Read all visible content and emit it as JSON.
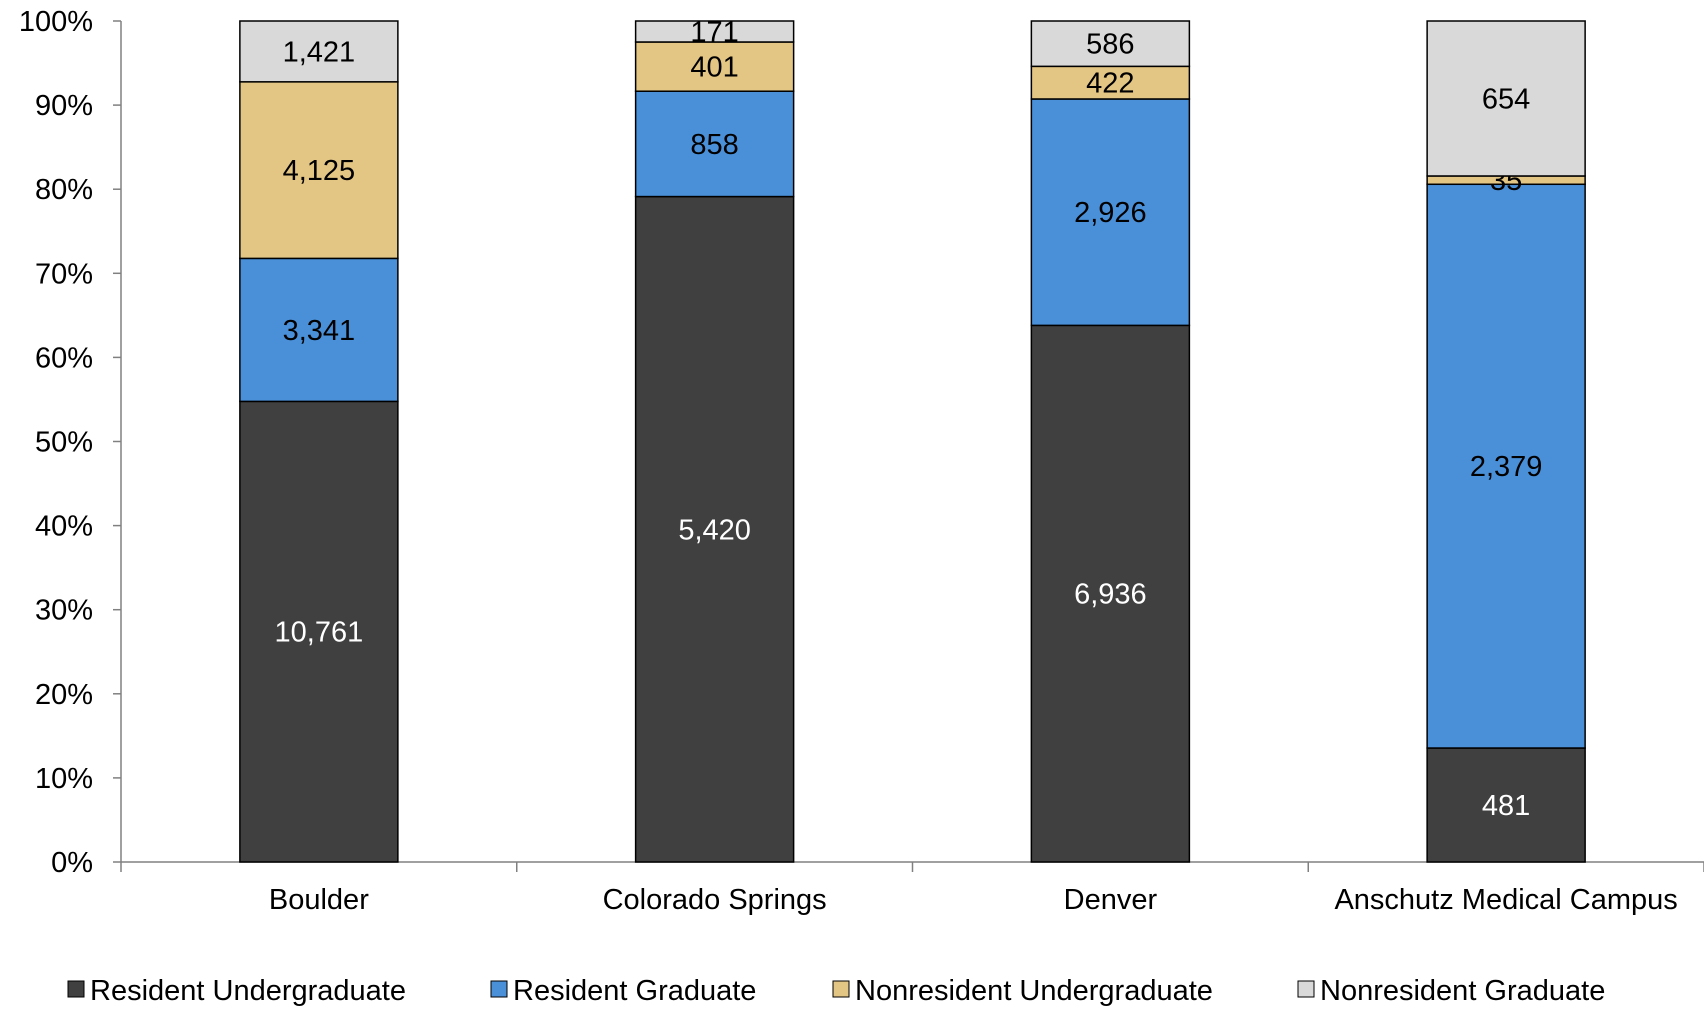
{
  "chart_data": {
    "type": "bar",
    "stacked": true,
    "normalized": true,
    "categories": [
      "Boulder",
      "Colorado Springs",
      "Denver",
      "Anschutz Medical Campus"
    ],
    "series": [
      {
        "name": "Resident Undergraduate",
        "color": "#404040",
        "label_color": "#ffffff",
        "values": [
          10761,
          5420,
          6936,
          481
        ],
        "labels": [
          "10,761",
          "5,420",
          "6,936",
          "481"
        ]
      },
      {
        "name": "Resident Graduate",
        "color": "#4a90d9",
        "label_color": "#000000",
        "values": [
          3341,
          858,
          2926,
          2379
        ],
        "labels": [
          "3,341",
          "858",
          "2,926",
          "2,379"
        ]
      },
      {
        "name": "Nonresident Undergraduate",
        "color": "#e3c584",
        "label_color": "#000000",
        "values": [
          4125,
          401,
          422,
          35
        ],
        "labels": [
          "4,125",
          "401",
          "422",
          "35"
        ]
      },
      {
        "name": "Nonresident Graduate",
        "color": "#d9d9d9",
        "label_color": "#000000",
        "values": [
          1421,
          171,
          586,
          654
        ],
        "labels": [
          "1,421",
          "171",
          "586",
          "654"
        ]
      }
    ],
    "yticks": [
      "0%",
      "10%",
      "20%",
      "30%",
      "40%",
      "50%",
      "60%",
      "70%",
      "80%",
      "90%",
      "100%"
    ],
    "ylim": [
      0,
      100
    ],
    "legend_position": "bottom",
    "grid": false
  }
}
